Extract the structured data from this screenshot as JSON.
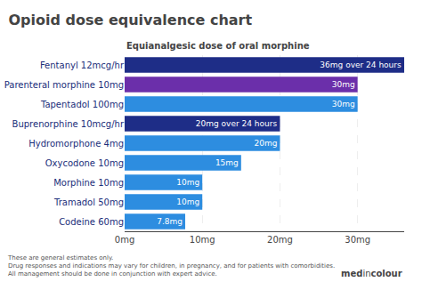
{
  "chart_data": {
    "type": "bar",
    "orientation": "horizontal",
    "title": "Opioid dose equivalence chart",
    "subtitle": "Equianalgesic dose of oral morphine",
    "categories": [
      "Fentanyl 12mcg/hr",
      "Parenteral morphine 10mg",
      "Tapentadol 100mg",
      "Buprenorphine 10mcg/hr",
      "Hydromorphone 4mg",
      "Oxycodone 10mg",
      "Morphine 10mg",
      "Tramadol 50mg",
      "Codeine 60mg"
    ],
    "values": [
      36,
      30,
      30,
      20,
      20,
      15,
      10,
      10,
      7.8
    ],
    "value_labels": [
      "36mg over 24 hours",
      "30mg",
      "30mg",
      "20mg over 24 hours",
      "20mg",
      "15mg",
      "10mg",
      "10mg",
      "7.8mg"
    ],
    "data_labels": true,
    "colors": [
      "#1e2d87",
      "#6b2faa",
      "#2d8de0",
      "#1e2d87",
      "#2d8de0",
      "#2d8de0",
      "#2d8de0",
      "#2d8de0",
      "#2d8de0"
    ],
    "xlim": [
      0,
      36
    ],
    "xticks": [
      {
        "value": 0,
        "label": "0mg"
      },
      {
        "value": 10,
        "label": "10mg"
      },
      {
        "value": 20,
        "label": "20mg"
      },
      {
        "value": 30,
        "label": "30mg"
      }
    ],
    "grid": true,
    "annotations": [
      "These are general estimates only.\nDrug responses and indications may vary for children, in pregnancy, and for patients with comorbidities.\nAll management should be done in conjunction with expert advice.",
      "med",
      "in",
      "colour"
    ]
  }
}
